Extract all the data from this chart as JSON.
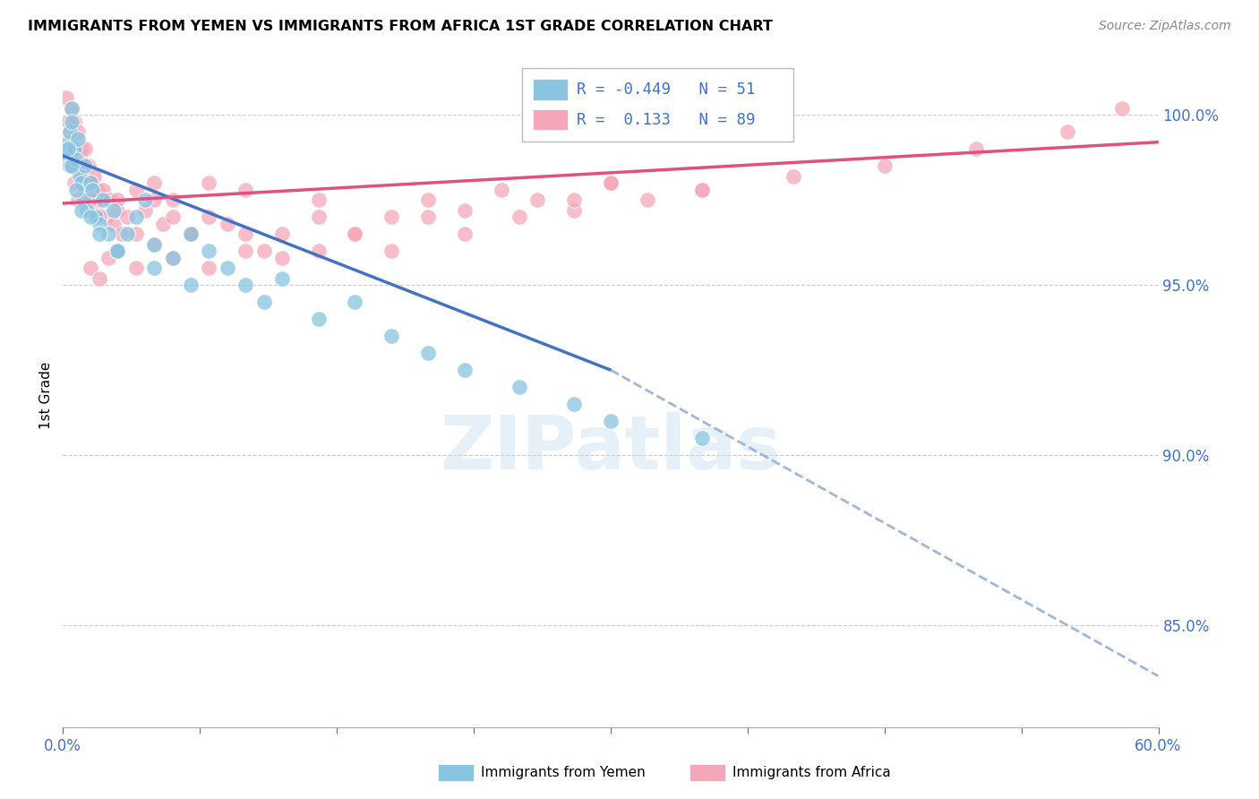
{
  "title": "IMMIGRANTS FROM YEMEN VS IMMIGRANTS FROM AFRICA 1ST GRADE CORRELATION CHART",
  "source": "Source: ZipAtlas.com",
  "ylabel": "1st Grade",
  "right_yticks": [
    100.0,
    95.0,
    90.0,
    85.0
  ],
  "xmin": 0.0,
  "xmax": 60.0,
  "ymin": 82.0,
  "ymax": 101.5,
  "watermark": "ZIPatlas",
  "legend_blue_r": "-0.449",
  "legend_blue_n": "51",
  "legend_pink_r": "0.133",
  "legend_pink_n": "89",
  "blue_color": "#89c4e1",
  "pink_color": "#f4a7b9",
  "blue_line_color": "#4472c4",
  "pink_line_color": "#e05080",
  "dashed_line_color": "#a0b8d8",
  "blue_scatter_x": [
    0.2,
    0.3,
    0.4,
    0.4,
    0.5,
    0.5,
    0.6,
    0.7,
    0.8,
    0.9,
    1.0,
    1.1,
    1.2,
    1.3,
    1.5,
    1.6,
    1.8,
    2.0,
    2.2,
    2.5,
    2.8,
    3.0,
    3.5,
    4.0,
    4.5,
    5.0,
    6.0,
    7.0,
    8.0,
    9.0,
    10.0,
    11.0,
    12.0,
    14.0,
    16.0,
    18.0,
    20.0,
    22.0,
    25.0,
    28.0,
    0.3,
    0.5,
    0.7,
    1.0,
    1.5,
    2.0,
    3.0,
    5.0,
    7.0,
    30.0,
    35.0
  ],
  "blue_scatter_y": [
    98.8,
    99.2,
    99.5,
    98.5,
    100.2,
    99.8,
    99.0,
    98.7,
    99.3,
    98.2,
    98.0,
    97.5,
    98.5,
    97.2,
    98.0,
    97.8,
    97.0,
    96.8,
    97.5,
    96.5,
    97.2,
    96.0,
    96.5,
    97.0,
    97.5,
    96.2,
    95.8,
    96.5,
    96.0,
    95.5,
    95.0,
    94.5,
    95.2,
    94.0,
    94.5,
    93.5,
    93.0,
    92.5,
    92.0,
    91.5,
    99.0,
    98.5,
    97.8,
    97.2,
    97.0,
    96.5,
    96.0,
    95.5,
    95.0,
    91.0,
    90.5
  ],
  "pink_scatter_x": [
    0.2,
    0.3,
    0.4,
    0.5,
    0.5,
    0.6,
    0.7,
    0.8,
    0.9,
    1.0,
    1.0,
    1.1,
    1.2,
    1.3,
    1.4,
    1.5,
    1.6,
    1.7,
    1.8,
    1.9,
    2.0,
    2.2,
    2.4,
    2.6,
    2.8,
    3.0,
    3.2,
    3.5,
    4.0,
    4.5,
    5.0,
    5.5,
    6.0,
    7.0,
    8.0,
    9.0,
    10.0,
    11.0,
    12.0,
    14.0,
    16.0,
    18.0,
    20.0,
    22.0,
    24.0,
    26.0,
    28.0,
    30.0,
    32.0,
    35.0,
    1.5,
    2.0,
    2.5,
    3.0,
    4.0,
    5.0,
    6.0,
    7.0,
    8.0,
    10.0,
    12.0,
    14.0,
    16.0,
    18.0,
    20.0,
    22.0,
    25.0,
    28.0,
    30.0,
    35.0,
    40.0,
    45.0,
    50.0,
    55.0,
    58.0,
    0.4,
    0.6,
    0.8,
    1.0,
    1.2,
    1.5,
    2.0,
    3.0,
    4.0,
    5.0,
    6.0,
    8.0,
    10.0,
    14.0
  ],
  "pink_scatter_y": [
    100.5,
    99.8,
    99.5,
    100.2,
    99.0,
    99.8,
    99.2,
    99.5,
    98.8,
    99.0,
    98.5,
    98.2,
    99.0,
    97.8,
    98.5,
    98.0,
    97.5,
    98.2,
    97.2,
    97.8,
    97.5,
    97.8,
    97.0,
    97.5,
    96.8,
    97.2,
    96.5,
    97.0,
    96.5,
    97.2,
    97.5,
    96.8,
    97.0,
    96.5,
    97.0,
    96.8,
    96.5,
    96.0,
    96.5,
    97.0,
    96.5,
    97.0,
    97.5,
    97.2,
    97.8,
    97.5,
    97.2,
    98.0,
    97.5,
    97.8,
    95.5,
    95.2,
    95.8,
    96.0,
    95.5,
    96.2,
    95.8,
    96.5,
    95.5,
    96.0,
    95.8,
    96.0,
    96.5,
    96.0,
    97.0,
    96.5,
    97.0,
    97.5,
    98.0,
    97.8,
    98.2,
    98.5,
    99.0,
    99.5,
    100.2,
    98.5,
    98.0,
    97.5,
    98.2,
    97.8,
    97.5,
    97.0,
    97.5,
    97.8,
    98.0,
    97.5,
    98.0,
    97.8,
    97.5
  ],
  "blue_trend_x0": 0.0,
  "blue_trend_y0": 98.8,
  "blue_trend_x1": 30.0,
  "blue_trend_y1": 92.5,
  "pink_trend_x0": 0.0,
  "pink_trend_y0": 97.4,
  "pink_trend_x1": 60.0,
  "pink_trend_y1": 99.2,
  "dashed_trend_x0": 30.0,
  "dashed_trend_y0": 92.5,
  "dashed_trend_x1": 60.0,
  "dashed_trend_y1": 83.5
}
